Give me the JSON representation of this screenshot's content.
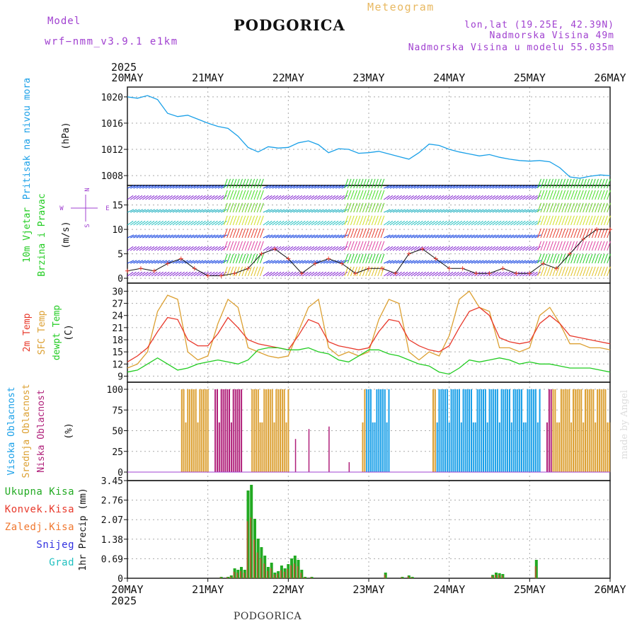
{
  "header": {
    "model_label": "Model",
    "model_name": "wrf−nmm_v3.9.1  e1km",
    "station": "PODGORICA",
    "product": "Meteogram",
    "lonlat": "lon,lat (19.25E, 42.39N)",
    "elevation": "Nadmorska Visina 49m",
    "model_elevation": "Nadmorska Visina u modelu 55.035m"
  },
  "footer": {
    "station": "PODGORICA",
    "credit": "made by Angel"
  },
  "time_axis": {
    "year": "2025",
    "ticks": [
      "20MAY",
      "21MAY",
      "22MAY",
      "23MAY",
      "24MAY",
      "25MAY",
      "26MAY"
    ]
  },
  "panels": {
    "pressure": {
      "label": "Pritisak na nivou mora",
      "unit": "(hPa)",
      "yticks": [
        "1020",
        "1016",
        "1012",
        "1008"
      ]
    },
    "wind": {
      "label1": "10m Vjetar",
      "label2": "Brzina i Pravac",
      "unit": "(m/s)",
      "yticks": [
        "15",
        "10",
        "5",
        "0"
      ],
      "compass": [
        "N",
        "S",
        "W",
        "E"
      ]
    },
    "temp": {
      "labels": [
        "2m Temp",
        "SFC Temp",
        "dewpt Temp"
      ],
      "unit": "(C)",
      "yticks": [
        "30",
        "27",
        "24",
        "21",
        "18",
        "15",
        "12",
        "9"
      ]
    },
    "cloud": {
      "labels": [
        "Visoka Oblacnost",
        "Srednja Oblacnost",
        "Niska Oblacnost"
      ],
      "unit": "(%)",
      "yticks": [
        "100",
        "75",
        "50",
        "25",
        "0"
      ]
    },
    "precip": {
      "legend": [
        "Ukupna Kisa",
        "Konvek.Kisa",
        "Zaledj.Kisa",
        "Snijeg",
        "Grad"
      ],
      "unit": "1hr Precip (mm)",
      "yticks": [
        "3.45",
        "2.76",
        "2.07",
        "1.38",
        "0.69",
        "0"
      ]
    }
  },
  "colors": {
    "pressure": "#1aa0e8",
    "temp2m": "#e8392b",
    "sfc": "#dca032",
    "dewpt": "#22cc22",
    "high_cloud": "#1aa0e8",
    "mid_cloud": "#dca032",
    "low_cloud": "#b0207a",
    "total_precip": "#22aa22",
    "conv_precip": "#e8392b",
    "frz_precip": "#f07830",
    "snow": "#3030e0",
    "grad": "#20c0c0",
    "model_text": "#a040d0",
    "meteogram": "#e8b860"
  },
  "chart_data": [
    {
      "type": "line",
      "name": "pressure",
      "ylabel": "Pritisak na nivou mora",
      "ylim": [
        1006.5,
        1021.5
      ],
      "x_unit": "hours since 2025-05-20 00 UTC",
      "x": [
        0,
        3,
        6,
        9,
        12,
        15,
        18,
        21,
        24,
        27,
        30,
        33,
        36,
        39,
        42,
        45,
        48,
        51,
        54,
        57,
        60,
        63,
        66,
        69,
        72,
        75,
        78,
        81,
        84,
        87,
        90,
        93,
        96,
        99,
        102,
        105,
        108,
        111,
        114,
        117,
        120,
        123,
        126,
        129,
        132,
        135,
        138,
        141,
        144
      ],
      "series": [
        {
          "values": [
            1020,
            1019.8,
            1020.2,
            1019.6,
            1017.5,
            1017,
            1017.2,
            1016.6,
            1016,
            1015.5,
            1015.2,
            1014,
            1012.3,
            1011.6,
            1012.4,
            1012.2,
            1012.3,
            1013,
            1013.3,
            1012.7,
            1011.5,
            1012.1,
            1012,
            1011.4,
            1011.5,
            1011.7,
            1011.3,
            1010.9,
            1010.5,
            1011.5,
            1012.8,
            1012.6,
            1012,
            1011.6,
            1011.3,
            1011,
            1011.2,
            1010.8,
            1010.5,
            1010.3,
            1010.2,
            1010.3,
            1010.1,
            1009.2,
            1007.8,
            1007.6,
            1007.9,
            1008.1,
            1008
          ]
        }
      ]
    },
    {
      "type": "line",
      "name": "wind speed",
      "ylabel": "10m Vjetar Brzina i Pravac (m/s)",
      "ylim": [
        -1,
        19
      ],
      "x": [
        0,
        4,
        8,
        12,
        16,
        20,
        24,
        28,
        32,
        36,
        40,
        44,
        48,
        52,
        56,
        60,
        64,
        68,
        72,
        76,
        80,
        84,
        88,
        92,
        96,
        100,
        104,
        108,
        112,
        116,
        120,
        124,
        128,
        132,
        136,
        140,
        144
      ],
      "series": [
        {
          "values": [
            1.5,
            2,
            1.5,
            3,
            4,
            2,
            0.5,
            0.5,
            1,
            2,
            5,
            6,
            4,
            1,
            3,
            4,
            3,
            1,
            2,
            2,
            1,
            5,
            6,
            4,
            2,
            2,
            1,
            1,
            2,
            1,
            1,
            3,
            2,
            5,
            8,
            10,
            10
          ]
        }
      ]
    },
    {
      "type": "line",
      "name": "temperature",
      "ylabel": "(C)",
      "ylim": [
        7.5,
        32
      ],
      "x": [
        0,
        3,
        6,
        9,
        12,
        15,
        18,
        21,
        24,
        27,
        30,
        33,
        36,
        39,
        42,
        45,
        48,
        51,
        54,
        57,
        60,
        63,
        66,
        69,
        72,
        75,
        78,
        81,
        84,
        87,
        90,
        93,
        96,
        99,
        102,
        105,
        108,
        111,
        114,
        117,
        120,
        123,
        126,
        129,
        132,
        135,
        138,
        141,
        144
      ],
      "series": [
        {
          "name": "2m Temp",
          "values": [
            12.5,
            14,
            16,
            20,
            23.5,
            23,
            18,
            16.5,
            16.5,
            19.5,
            23.5,
            21,
            18,
            17,
            16.5,
            16,
            15.5,
            19,
            23,
            22,
            17.5,
            16.5,
            16,
            15.5,
            16,
            20,
            23,
            22.5,
            18,
            16.5,
            15.5,
            15,
            16.5,
            21,
            25,
            26,
            24,
            18.5,
            17.5,
            17,
            17.5,
            22,
            24,
            22,
            19,
            18.5,
            18,
            17.5,
            17
          ]
        },
        {
          "name": "SFC Temp",
          "values": [
            11,
            12,
            15,
            25,
            29,
            28,
            15,
            13,
            14,
            22,
            28,
            26,
            16,
            15,
            14,
            13.5,
            14,
            20,
            26,
            28,
            16,
            14,
            15,
            14,
            15,
            23,
            28,
            27,
            15,
            13,
            15,
            14,
            19,
            28,
            30,
            26,
            25,
            16,
            16,
            15,
            16,
            24,
            26,
            22,
            17,
            17,
            16,
            16,
            15.5
          ]
        },
        {
          "name": "dewpt Temp",
          "values": [
            10,
            10.5,
            12,
            13.5,
            12,
            10.5,
            11,
            12,
            12.5,
            13,
            12.5,
            12,
            13,
            15.5,
            16,
            16,
            15.5,
            15.5,
            16,
            15,
            14.5,
            13,
            12.5,
            14,
            15.5,
            15.5,
            14.5,
            14,
            13,
            12,
            11.5,
            10,
            9.5,
            11,
            13,
            12.5,
            13,
            13.5,
            13,
            12,
            12.5,
            12,
            12,
            11.5,
            11,
            11,
            11,
            10.5,
            10
          ]
        }
      ]
    },
    {
      "type": "bar",
      "name": "cloud cover",
      "ylabel": "(%)",
      "ylim": [
        0,
        100
      ],
      "segments_hours": [
        [
          16,
          24
        ],
        [
          26,
          34
        ],
        [
          37,
          48
        ],
        [
          70,
          78
        ],
        [
          91,
          123
        ],
        [
          125,
          144
        ]
      ],
      "series": [
        {
          "name": "Visoka Oblacnost"
        },
        {
          "name": "Srednja Oblacnost"
        },
        {
          "name": "Niska Oblacnost"
        }
      ]
    },
    {
      "type": "bar",
      "name": "precipitation",
      "ylabel": "1hr Precip (mm)",
      "ylim": [
        0,
        3.45
      ],
      "x": [
        28,
        29,
        30,
        31,
        32,
        33,
        34,
        35,
        36,
        37,
        38,
        39,
        40,
        41,
        42,
        43,
        44,
        45,
        46,
        47,
        48,
        49,
        50,
        51,
        52,
        53,
        54,
        55,
        56,
        57,
        58,
        59,
        60,
        61,
        62,
        63,
        64,
        65,
        66,
        67,
        68,
        69,
        70,
        71,
        72,
        73,
        74,
        75,
        76,
        77,
        78,
        79,
        80,
        81,
        82,
        83,
        84,
        85,
        86,
        87,
        88,
        89,
        90,
        91,
        92,
        93,
        94,
        95,
        96,
        97,
        98,
        99,
        100,
        101,
        102,
        103,
        104,
        105,
        106,
        107,
        108,
        109,
        110,
        111,
        112,
        113,
        114,
        115,
        116,
        117,
        118,
        119,
        120,
        121,
        122
      ],
      "series": [
        {
          "name": "Ukupna Kisa",
          "values": [
            0.05,
            0,
            0.05,
            0.1,
            0.35,
            0.3,
            0.4,
            0.3,
            3.1,
            3.3,
            2.1,
            1.4,
            1.1,
            0.8,
            0.4,
            0.55,
            0.2,
            0.25,
            0.45,
            0.35,
            0.5,
            0.7,
            0.8,
            0.65,
            0.3,
            0.05,
            0,
            0.05,
            0,
            0,
            0,
            0,
            0,
            0,
            0,
            0,
            0,
            0,
            0,
            0,
            0,
            0,
            0,
            0,
            0,
            0,
            0,
            0,
            0,
            0.2,
            0,
            0,
            0,
            0,
            0.05,
            0,
            0.1,
            0.05,
            0,
            0,
            0,
            0,
            0,
            0,
            0,
            0,
            0,
            0,
            0,
            0,
            0,
            0,
            0,
            0,
            0,
            0,
            0,
            0,
            0,
            0,
            0,
            0.12,
            0.2,
            0.18,
            0.15,
            0,
            0,
            0,
            0,
            0,
            0,
            0,
            0,
            0,
            0.65
          ]
        }
      ]
    }
  ]
}
